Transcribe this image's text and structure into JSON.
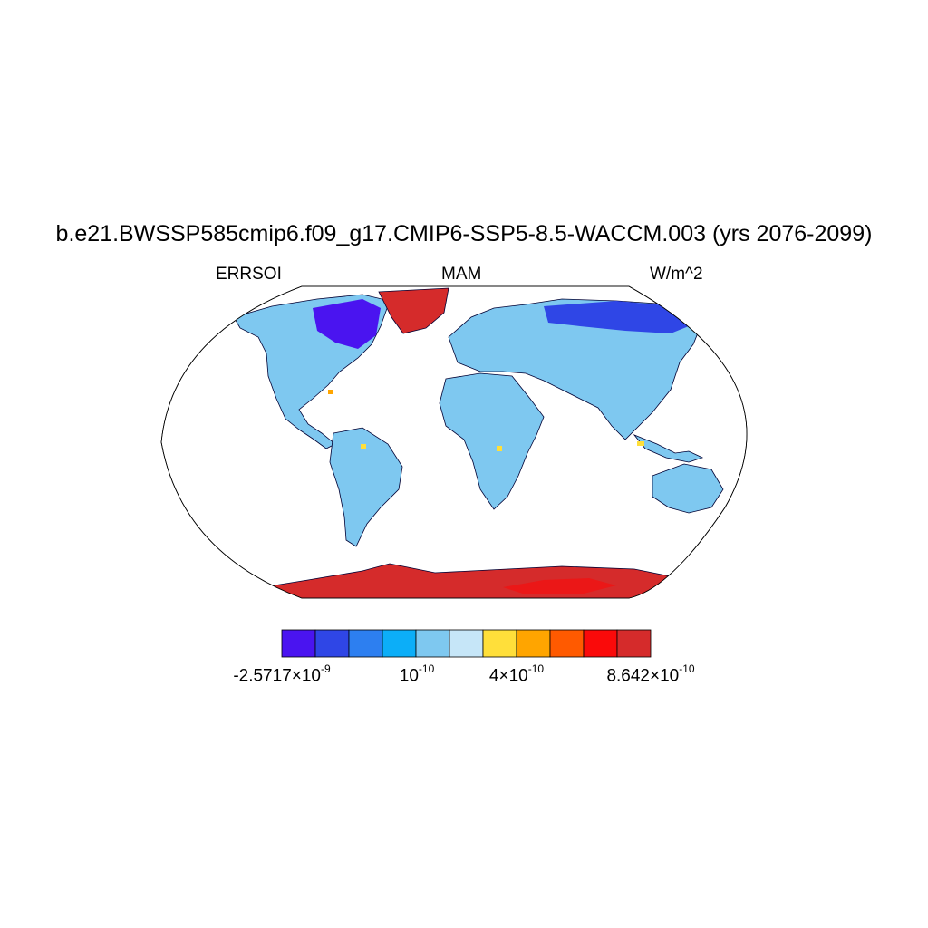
{
  "title": "b.e21.BWSSP585cmip6.f09_g17.CMIP6-SSP5-8.5-WACCM.003 (yrs 2076-2099)",
  "variable": "ERRSOI",
  "season": "MAM",
  "units": "W/m^2",
  "colorbar": {
    "colors": [
      "#4a14f0",
      "#2f46e6",
      "#2d7ff0",
      "#0caef8",
      "#7ec8f0",
      "#c6e6f8",
      "#ffdf3a",
      "#ffa500",
      "#ff5a00",
      "#fa0a0a",
      "#d52b2b"
    ],
    "labels": [
      {
        "mantissa": "-2.5717",
        "exponent": "-9"
      },
      {
        "mantissa": "",
        "exponent": "-10"
      },
      {
        "mantissa": "4",
        "exponent": "-10"
      },
      {
        "mantissa": "8.642",
        "exponent": "-10"
      }
    ]
  },
  "map": {
    "projection": "robinson",
    "background_color": "#ffffff",
    "land_base_color": "#7ec8f0",
    "regions": [
      {
        "name": "antarctica",
        "color": "#d52b2b"
      },
      {
        "name": "greenland",
        "color": "#d52b2b"
      },
      {
        "name": "canada-north",
        "color": "#4a14f0"
      },
      {
        "name": "siberia",
        "color": "#2f46e6"
      }
    ]
  }
}
